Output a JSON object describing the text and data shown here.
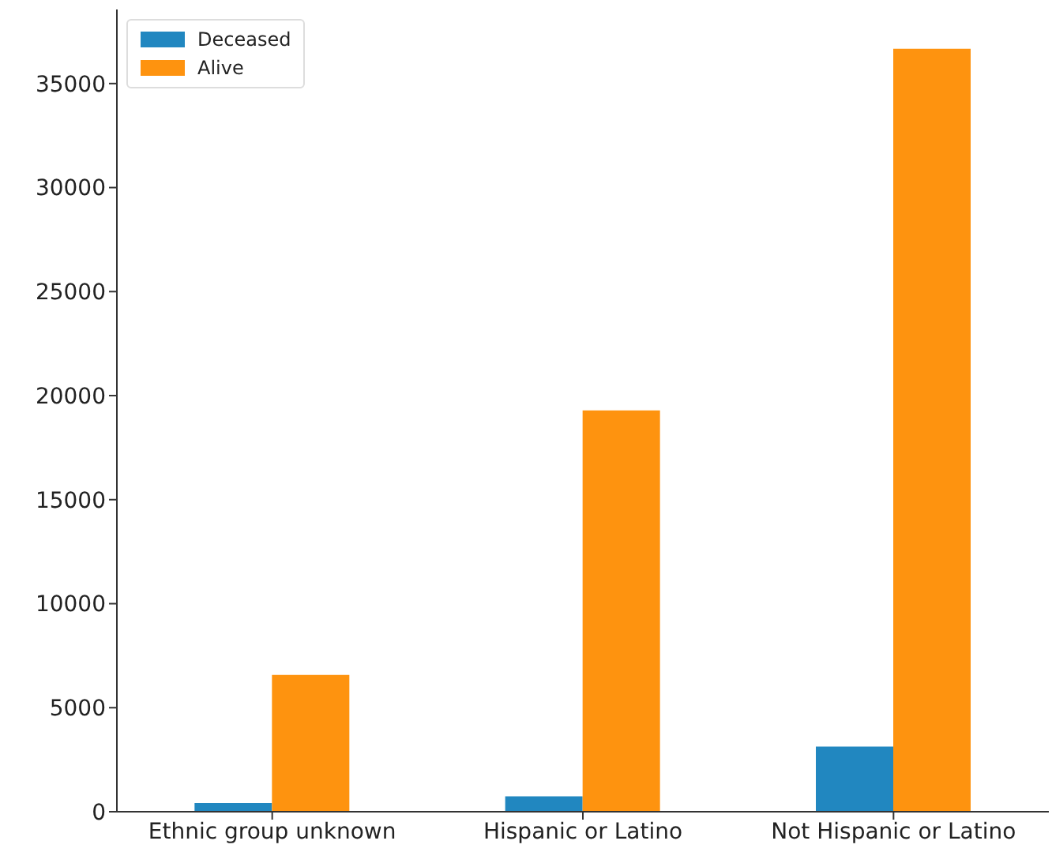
{
  "chart_data": {
    "type": "bar",
    "categories": [
      "Ethnic group unknown",
      "Hispanic or Latino",
      "Not Hispanic or Latino"
    ],
    "series": [
      {
        "name": "Deceased",
        "color": "#2187c0",
        "values": [
          420,
          740,
          3130
        ]
      },
      {
        "name": "Alive",
        "color": "#fe930f",
        "values": [
          6580,
          19290,
          36670
        ]
      }
    ],
    "ylim": [
      0,
      38560
    ],
    "yticks": [
      0,
      5000,
      10000,
      15000,
      20000,
      25000,
      30000,
      35000
    ],
    "legend": "top left"
  }
}
